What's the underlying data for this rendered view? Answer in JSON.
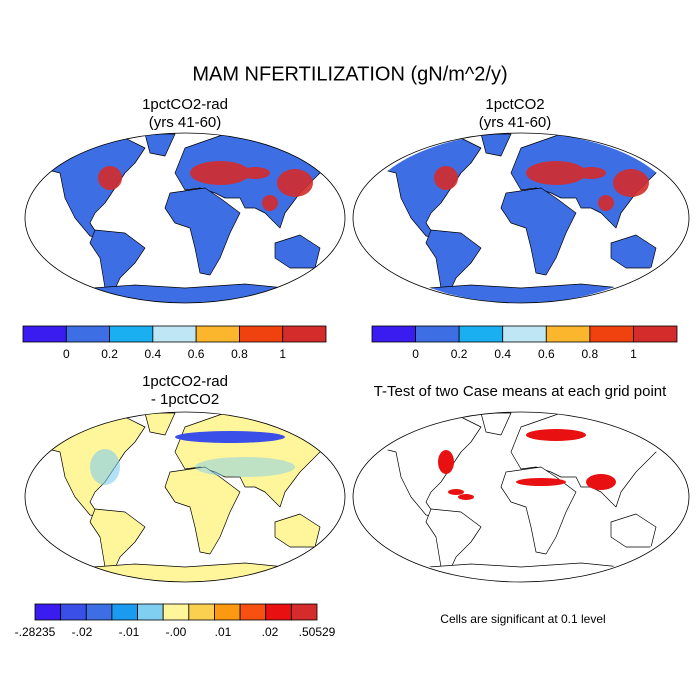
{
  "title": "MAM NFERTILIZATION (gN/m^2/y)",
  "panels": [
    {
      "title": [
        "1pctCO2-rad",
        "(yrs 41-60)"
      ]
    },
    {
      "title": [
        "1pctCO2",
        "(yrs 41-60)"
      ]
    },
    {
      "title": [
        "1pctCO2-rad",
        "- 1pctCO2"
      ]
    },
    {
      "title": [
        "T-Test of two Case means at each grid point"
      ]
    }
  ],
  "colorbars": [
    {
      "labels": [
        "0",
        "0.2",
        "0.4",
        "0.6",
        "0.8",
        "1"
      ],
      "colors": [
        "#3b1cf0",
        "#3e6ee4",
        "#1aaff0",
        "#bfe6f5",
        "#fbb62d",
        "#f0420f",
        "#d42b2b"
      ]
    },
    {
      "labels": [
        "0",
        "0.2",
        "0.4",
        "0.6",
        "0.8",
        "1"
      ],
      "colors": [
        "#3b1cf0",
        "#3e6ee4",
        "#1aaff0",
        "#bfe6f5",
        "#fbb62d",
        "#f0420f",
        "#d42b2b"
      ]
    },
    {
      "labels": [
        "-.28235",
        "-.02",
        "-.01",
        "-.00",
        ".01",
        ".02",
        ".50529"
      ],
      "colors": [
        "#3b1cf0",
        "#3a4fe8",
        "#3e6ee4",
        "#1a9bf0",
        "#80cff0",
        "#fff59a",
        "#fbd050",
        "#fb9a10",
        "#f85010",
        "#e81010",
        "#d42b2b"
      ]
    }
  ],
  "note": "Cells are significant at 0.1 level"
}
